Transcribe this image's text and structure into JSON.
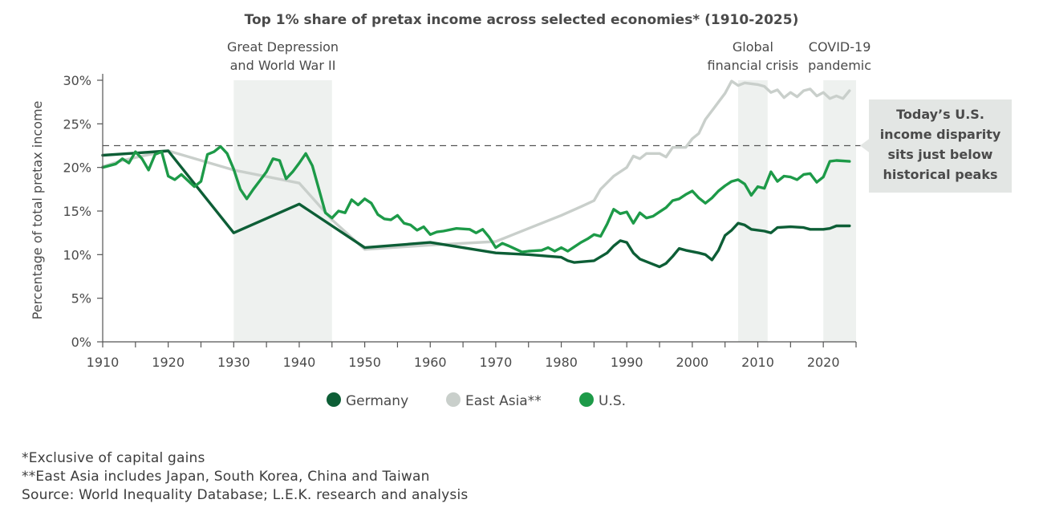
{
  "chart_data": {
    "type": "line",
    "title": "Top 1% share of pretax income across selected economies* (1910-2025)",
    "xlabel": "",
    "ylabel": "Percentage of total pretax income",
    "xlim": [
      1910,
      2025
    ],
    "ylim": [
      0,
      30
    ],
    "x_ticks": [
      "1910",
      "1920",
      "1930",
      "1940",
      "1950",
      "1960",
      "1970",
      "1980",
      "1990",
      "2000",
      "2010",
      "2020"
    ],
    "y_ticks": [
      "0%",
      "5%",
      "10%",
      "15%",
      "20%",
      "25%",
      "30%"
    ],
    "grid": false,
    "legend_position": "bottom-center",
    "reference_line": {
      "y": 22.5,
      "style": "dashed"
    },
    "shaded_periods": [
      {
        "start": 1930,
        "end": 1945,
        "label_lines": [
          "Great Depression",
          "and World War II"
        ]
      },
      {
        "start": 2007,
        "end": 2011.5,
        "label_lines": [
          "Global",
          "financial crisis"
        ]
      },
      {
        "start": 2020,
        "end": 2025,
        "label_lines": [
          "COVID-19",
          "pandemic"
        ]
      }
    ],
    "callout": {
      "lines": [
        "Today’s U.S.",
        "income disparity",
        "sits just below",
        "historical peaks"
      ]
    },
    "series": [
      {
        "name": "Germany",
        "color": "#0d5e36",
        "points": [
          [
            1910,
            21.4
          ],
          [
            1914,
            21.6
          ],
          [
            1920,
            21.9
          ],
          [
            1930,
            12.5
          ],
          [
            1940,
            15.8
          ],
          [
            1950,
            10.8
          ],
          [
            1960,
            11.4
          ],
          [
            1970,
            10.2
          ],
          [
            1975,
            10.0
          ],
          [
            1980,
            9.7
          ],
          [
            1981,
            9.3
          ],
          [
            1982,
            9.1
          ],
          [
            1985,
            9.3
          ],
          [
            1987,
            10.2
          ],
          [
            1988,
            11.0
          ],
          [
            1989,
            11.6
          ],
          [
            1990,
            11.4
          ],
          [
            1991,
            10.2
          ],
          [
            1992,
            9.5
          ],
          [
            1994,
            8.9
          ],
          [
            1995,
            8.6
          ],
          [
            1996,
            9.0
          ],
          [
            1997,
            9.8
          ],
          [
            1998,
            10.7
          ],
          [
            1999,
            10.5
          ],
          [
            2001,
            10.2
          ],
          [
            2002,
            10.0
          ],
          [
            2003,
            9.4
          ],
          [
            2004,
            10.5
          ],
          [
            2005,
            12.2
          ],
          [
            2006,
            12.8
          ],
          [
            2007,
            13.6
          ],
          [
            2008,
            13.4
          ],
          [
            2009,
            12.9
          ],
          [
            2011,
            12.7
          ],
          [
            2012,
            12.5
          ],
          [
            2013,
            13.1
          ],
          [
            2015,
            13.2
          ],
          [
            2017,
            13.1
          ],
          [
            2018,
            12.9
          ],
          [
            2020,
            12.9
          ],
          [
            2021,
            13.0
          ],
          [
            2022,
            13.3
          ],
          [
            2024,
            13.3
          ]
        ]
      },
      {
        "name": "East Asia**",
        "color": "#c9cfcb",
        "points": [
          [
            1910,
            20.1
          ],
          [
            1913,
            20.8
          ],
          [
            1916,
            21.3
          ],
          [
            1920,
            21.9
          ],
          [
            1930,
            19.7
          ],
          [
            1940,
            18.2
          ],
          [
            1945,
            14.0
          ],
          [
            1950,
            10.6
          ],
          [
            1960,
            11.1
          ],
          [
            1970,
            11.5
          ],
          [
            1975,
            13.0
          ],
          [
            1980,
            14.5
          ],
          [
            1983,
            15.5
          ],
          [
            1985,
            16.2
          ],
          [
            1986,
            17.5
          ],
          [
            1988,
            19.0
          ],
          [
            1990,
            20.0
          ],
          [
            1991,
            21.3
          ],
          [
            1992,
            21.0
          ],
          [
            1993,
            21.6
          ],
          [
            1995,
            21.6
          ],
          [
            1996,
            21.2
          ],
          [
            1997,
            22.3
          ],
          [
            1999,
            22.3
          ],
          [
            2000,
            23.3
          ],
          [
            2001,
            23.9
          ],
          [
            2002,
            25.5
          ],
          [
            2003,
            26.5
          ],
          [
            2004,
            27.5
          ],
          [
            2005,
            28.5
          ],
          [
            2006,
            29.9
          ],
          [
            2007,
            29.4
          ],
          [
            2008,
            29.7
          ],
          [
            2010,
            29.5
          ],
          [
            2011,
            29.3
          ],
          [
            2012,
            28.6
          ],
          [
            2013,
            28.9
          ],
          [
            2014,
            28.0
          ],
          [
            2015,
            28.6
          ],
          [
            2016,
            28.1
          ],
          [
            2017,
            28.8
          ],
          [
            2018,
            29.0
          ],
          [
            2019,
            28.2
          ],
          [
            2020,
            28.6
          ],
          [
            2021,
            27.9
          ],
          [
            2022,
            28.2
          ],
          [
            2023,
            27.9
          ],
          [
            2024,
            28.8
          ]
        ]
      },
      {
        "name": "U.S.",
        "color": "#1d9a48",
        "points": [
          [
            1910,
            20.0
          ],
          [
            1912,
            20.4
          ],
          [
            1913,
            21.0
          ],
          [
            1914,
            20.5
          ],
          [
            1915,
            21.8
          ],
          [
            1916,
            21.0
          ],
          [
            1917,
            19.7
          ],
          [
            1918,
            21.5
          ],
          [
            1919,
            21.8
          ],
          [
            1920,
            19.0
          ],
          [
            1921,
            18.6
          ],
          [
            1922,
            19.2
          ],
          [
            1924,
            17.8
          ],
          [
            1925,
            18.4
          ],
          [
            1926,
            21.5
          ],
          [
            1927,
            21.8
          ],
          [
            1928,
            22.4
          ],
          [
            1929,
            21.6
          ],
          [
            1930,
            19.8
          ],
          [
            1931,
            17.5
          ],
          [
            1932,
            16.4
          ],
          [
            1933,
            17.5
          ],
          [
            1934,
            18.5
          ],
          [
            1935,
            19.5
          ],
          [
            1936,
            21.0
          ],
          [
            1937,
            20.8
          ],
          [
            1938,
            18.7
          ],
          [
            1939,
            19.5
          ],
          [
            1940,
            20.5
          ],
          [
            1941,
            21.6
          ],
          [
            1942,
            20.2
          ],
          [
            1943,
            17.5
          ],
          [
            1944,
            14.8
          ],
          [
            1945,
            14.2
          ],
          [
            1946,
            15.0
          ],
          [
            1947,
            14.8
          ],
          [
            1948,
            16.3
          ],
          [
            1949,
            15.7
          ],
          [
            1950,
            16.4
          ],
          [
            1951,
            15.9
          ],
          [
            1952,
            14.6
          ],
          [
            1953,
            14.1
          ],
          [
            1954,
            14.0
          ],
          [
            1955,
            14.5
          ],
          [
            1956,
            13.6
          ],
          [
            1957,
            13.4
          ],
          [
            1958,
            12.8
          ],
          [
            1959,
            13.2
          ],
          [
            1960,
            12.3
          ],
          [
            1961,
            12.6
          ],
          [
            1962,
            12.7
          ],
          [
            1964,
            13.0
          ],
          [
            1966,
            12.9
          ],
          [
            1967,
            12.5
          ],
          [
            1968,
            12.9
          ],
          [
            1969,
            12.0
          ],
          [
            1970,
            10.8
          ],
          [
            1971,
            11.3
          ],
          [
            1972,
            11.0
          ],
          [
            1974,
            10.3
          ],
          [
            1975,
            10.4
          ],
          [
            1977,
            10.5
          ],
          [
            1978,
            10.8
          ],
          [
            1979,
            10.4
          ],
          [
            1980,
            10.8
          ],
          [
            1981,
            10.4
          ],
          [
            1982,
            10.9
          ],
          [
            1983,
            11.4
          ],
          [
            1984,
            11.8
          ],
          [
            1985,
            12.3
          ],
          [
            1986,
            12.1
          ],
          [
            1987,
            13.5
          ],
          [
            1988,
            15.2
          ],
          [
            1989,
            14.7
          ],
          [
            1990,
            14.9
          ],
          [
            1991,
            13.6
          ],
          [
            1992,
            14.8
          ],
          [
            1993,
            14.2
          ],
          [
            1994,
            14.4
          ],
          [
            1995,
            14.9
          ],
          [
            1996,
            15.4
          ],
          [
            1997,
            16.2
          ],
          [
            1998,
            16.4
          ],
          [
            1999,
            16.9
          ],
          [
            2000,
            17.3
          ],
          [
            2001,
            16.5
          ],
          [
            2002,
            15.9
          ],
          [
            2003,
            16.5
          ],
          [
            2004,
            17.3
          ],
          [
            2005,
            17.9
          ],
          [
            2006,
            18.4
          ],
          [
            2007,
            18.6
          ],
          [
            2008,
            18.1
          ],
          [
            2009,
            16.8
          ],
          [
            2010,
            17.8
          ],
          [
            2011,
            17.6
          ],
          [
            2012,
            19.5
          ],
          [
            2013,
            18.4
          ],
          [
            2014,
            19.0
          ],
          [
            2015,
            18.9
          ],
          [
            2016,
            18.6
          ],
          [
            2017,
            19.2
          ],
          [
            2018,
            19.3
          ],
          [
            2019,
            18.3
          ],
          [
            2020,
            18.9
          ],
          [
            2021,
            20.7
          ],
          [
            2022,
            20.8
          ],
          [
            2024,
            20.7
          ]
        ]
      }
    ]
  },
  "footnotes": [
    "*Exclusive of capital gains",
    "**East Asia includes Japan, South Korea, China and Taiwan",
    "Source: World Inequality Database; L.E.K. research and analysis"
  ]
}
